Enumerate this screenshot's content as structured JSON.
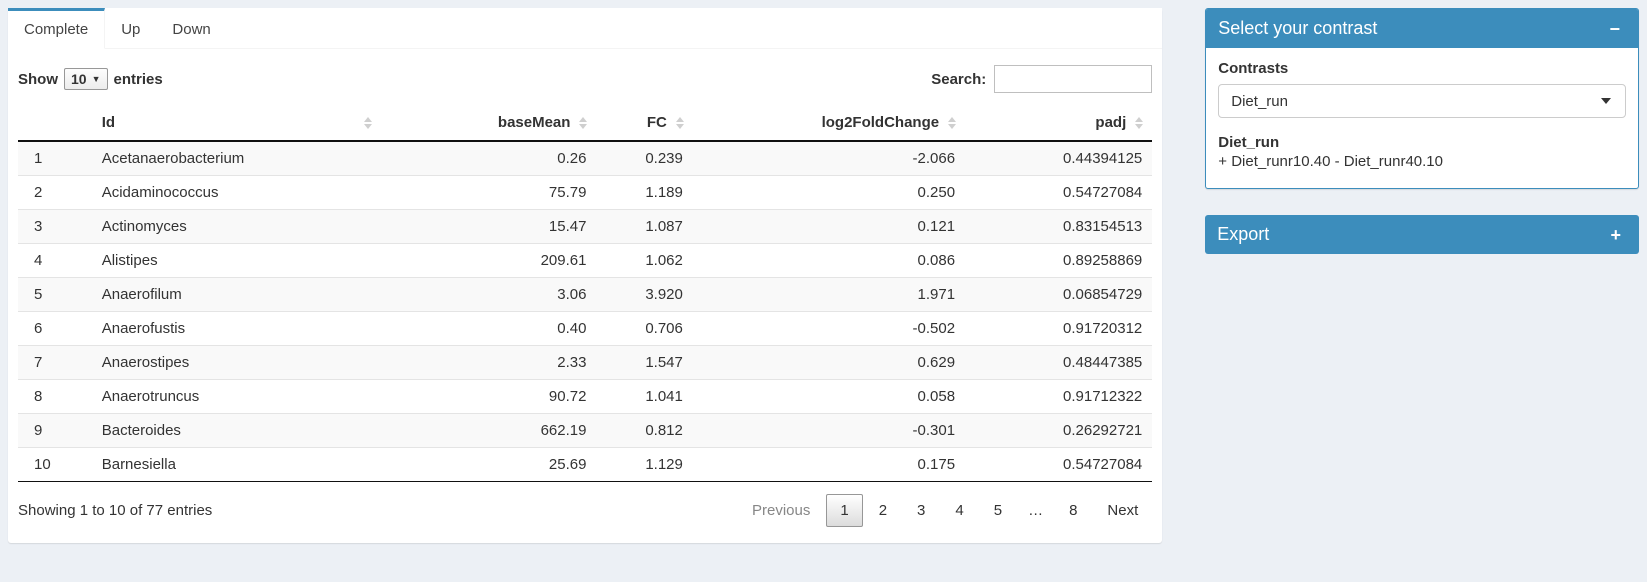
{
  "tabs": [
    {
      "label": "Complete",
      "active": true
    },
    {
      "label": "Up",
      "active": false
    },
    {
      "label": "Down",
      "active": false
    }
  ],
  "table_controls": {
    "show_label": "Show",
    "page_length": "10",
    "entries_label": "entries",
    "search_label": "Search:",
    "search_value": ""
  },
  "table": {
    "columns": [
      "",
      "Id",
      "baseMean",
      "FC",
      "log2FoldChange",
      "padj"
    ],
    "rows": [
      {
        "n": "1",
        "id": "Acetanaerobacterium",
        "baseMean": "0.26",
        "fc": "0.239",
        "log2fc": "-2.066",
        "padj": "0.44394125"
      },
      {
        "n": "2",
        "id": "Acidaminococcus",
        "baseMean": "75.79",
        "fc": "1.189",
        "log2fc": "0.250",
        "padj": "0.54727084"
      },
      {
        "n": "3",
        "id": "Actinomyces",
        "baseMean": "15.47",
        "fc": "1.087",
        "log2fc": "0.121",
        "padj": "0.83154513"
      },
      {
        "n": "4",
        "id": "Alistipes",
        "baseMean": "209.61",
        "fc": "1.062",
        "log2fc": "0.086",
        "padj": "0.89258869"
      },
      {
        "n": "5",
        "id": "Anaerofilum",
        "baseMean": "3.06",
        "fc": "3.920",
        "log2fc": "1.971",
        "padj": "0.06854729"
      },
      {
        "n": "6",
        "id": "Anaerofustis",
        "baseMean": "0.40",
        "fc": "0.706",
        "log2fc": "-0.502",
        "padj": "0.91720312"
      },
      {
        "n": "7",
        "id": "Anaerostipes",
        "baseMean": "2.33",
        "fc": "1.547",
        "log2fc": "0.629",
        "padj": "0.48447385"
      },
      {
        "n": "8",
        "id": "Anaerotruncus",
        "baseMean": "90.72",
        "fc": "1.041",
        "log2fc": "0.058",
        "padj": "0.91712322"
      },
      {
        "n": "9",
        "id": "Bacteroides",
        "baseMean": "662.19",
        "fc": "0.812",
        "log2fc": "-0.301",
        "padj": "0.26292721"
      },
      {
        "n": "10",
        "id": "Barnesiella",
        "baseMean": "25.69",
        "fc": "1.129",
        "log2fc": "0.175",
        "padj": "0.54727084"
      }
    ]
  },
  "footer": {
    "info": "Showing 1 to 10 of 77 entries",
    "pagination": {
      "previous": "Previous",
      "pages": [
        "1",
        "2",
        "3",
        "4",
        "5",
        "…",
        "8"
      ],
      "current": "1",
      "next": "Next"
    }
  },
  "sidebar": {
    "contrast_box": {
      "title": "Select your contrast",
      "collapse_icon": "−",
      "contrasts_label": "Contrasts",
      "selected_contrast": "Diet_run",
      "contrast_name": "Diet_run",
      "contrast_formula": "+ Diet_runr10.40 - Diet_runr40.10"
    },
    "export_box": {
      "title": "Export",
      "expand_icon": "+"
    }
  },
  "colors": {
    "accent": "#3c8dbc",
    "page_background": "#ecf0f5"
  }
}
